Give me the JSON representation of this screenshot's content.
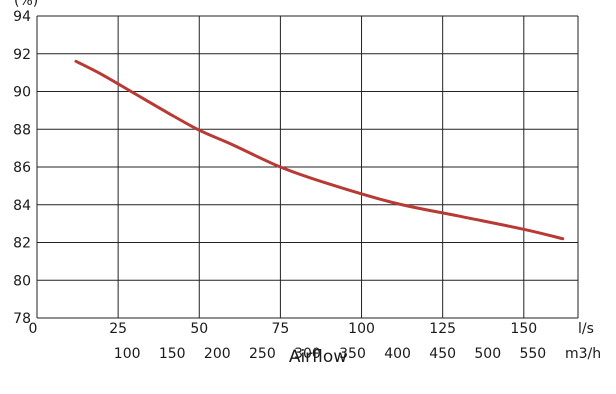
{
  "chart_data": {
    "type": "line",
    "title": "",
    "xlabel": "Airflow",
    "ylabel": "(%)",
    "grid": true,
    "y_axis": {
      "range": [
        78,
        94
      ],
      "ticks": [
        78,
        80,
        82,
        84,
        86,
        88,
        90,
        92,
        94
      ]
    },
    "x_axis_primary": {
      "unit": "l/s",
      "range": [
        0,
        166.7
      ],
      "ticks": [
        0,
        25,
        50,
        75,
        100,
        125,
        150
      ]
    },
    "x_axis_secondary": {
      "unit": "m3/h",
      "ticks": [
        100,
        150,
        200,
        250,
        300,
        350,
        400,
        450,
        500,
        550
      ]
    },
    "series": [
      {
        "color": "#b83a35",
        "x": [
          12,
          20,
          30,
          40,
          50,
          60,
          75,
          90,
          110,
          130,
          150,
          162
        ],
        "y": [
          91.6,
          90.9,
          89.9,
          88.9,
          87.95,
          87.2,
          86.0,
          85.1,
          84.1,
          83.4,
          82.7,
          82.2
        ]
      }
    ]
  }
}
